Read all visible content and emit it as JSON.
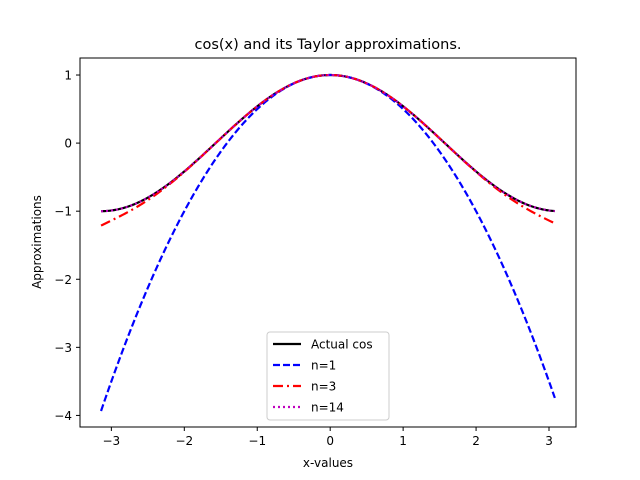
{
  "chart_data": {
    "type": "line",
    "title": "cos(x) and its Taylor approximations.",
    "xlabel": "x-values",
    "ylabel": "Approximations",
    "xlim": [
      -3.43,
      3.37
    ],
    "ylim": [
      -4.17,
      1.25
    ],
    "xticks": [
      -3,
      -2,
      -1,
      0,
      1,
      2,
      3
    ],
    "yticks": [
      1,
      0,
      -1,
      -2,
      -3,
      -4
    ],
    "xtick_labels": [
      "−3",
      "−2",
      "−1",
      "0",
      "1",
      "2",
      "3"
    ],
    "ytick_labels": [
      "1",
      "0",
      "−1",
      "−2",
      "−3",
      "−4"
    ],
    "x_range": [
      -3.14159,
      3.08
    ],
    "grid": false,
    "legend_position": "lower center",
    "series": [
      {
        "name": "Actual cos",
        "function": "cos(x)",
        "taylor_terms": null,
        "color": "#000000",
        "style": "solid"
      },
      {
        "name": "n=1",
        "function": "Taylor series of cos(x), 1 term after constant",
        "taylor_terms": 1,
        "color": "#0000ff",
        "style": "dashed"
      },
      {
        "name": "n=3",
        "function": "Taylor series of cos(x), 3 terms after constant",
        "taylor_terms": 3,
        "color": "#ff0000",
        "style": "dashdot"
      },
      {
        "name": "n=14",
        "function": "Taylor series of cos(x), 14 terms after constant",
        "taylor_terms": 14,
        "color": "#bf00bf",
        "style": "dotted"
      }
    ]
  }
}
